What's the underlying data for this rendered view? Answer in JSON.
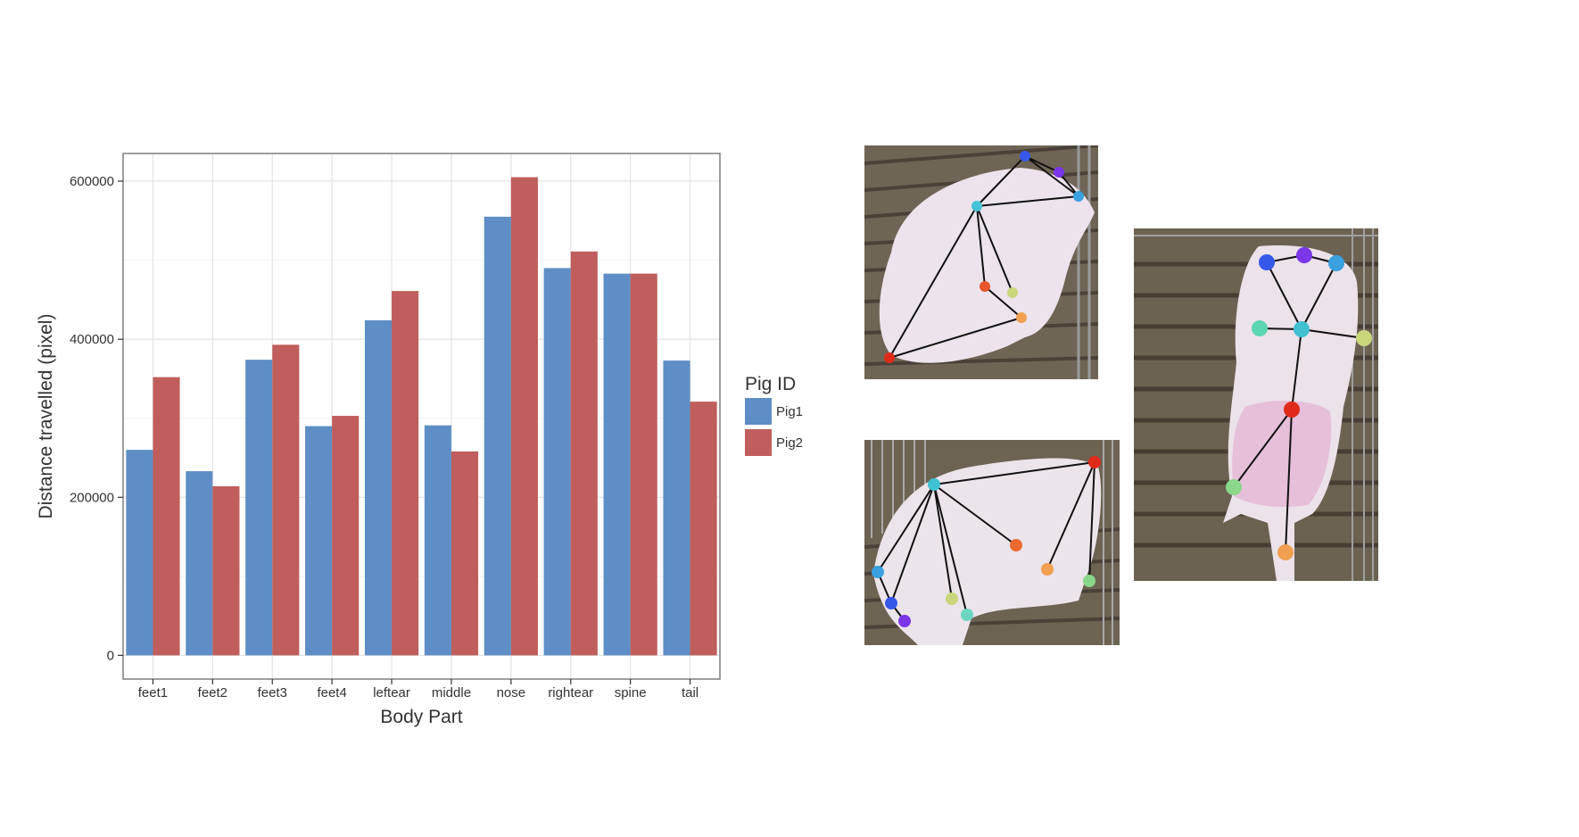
{
  "chart_data": {
    "type": "bar",
    "xlabel": "Body Part",
    "ylabel": "Distance travelled (pixel)",
    "categories": [
      "feet1",
      "feet2",
      "feet3",
      "feet4",
      "leftear",
      "middle",
      "nose",
      "rightear",
      "spine",
      "tail"
    ],
    "series": [
      {
        "name": "Pig1",
        "color": "#5e8ec5",
        "values": [
          260000,
          233000,
          374000,
          290000,
          424000,
          291000,
          555000,
          490000,
          483000,
          373000
        ]
      },
      {
        "name": "Pig2",
        "color": "#bf5e5c",
        "values": [
          352000,
          214000,
          393000,
          303000,
          461000,
          258000,
          605000,
          511000,
          483000,
          321000
        ]
      }
    ],
    "ylim": [
      -30000,
      635000
    ],
    "yticks": [
      0,
      200000,
      400000,
      600000
    ],
    "ytick_labels": [
      "0",
      "200000",
      "400000",
      "600000"
    ],
    "grid": true,
    "legend_title": "Pig ID",
    "legend_position": "right"
  },
  "images": [
    {
      "name": "pig-photo-top-left",
      "subject": "pig keypoint skeleton, side view"
    },
    {
      "name": "pig-photo-bottom-left",
      "subject": "pig keypoint skeleton, head-down side view"
    },
    {
      "name": "pig-photo-right",
      "subject": "pig keypoint skeleton, top-down view"
    }
  ]
}
